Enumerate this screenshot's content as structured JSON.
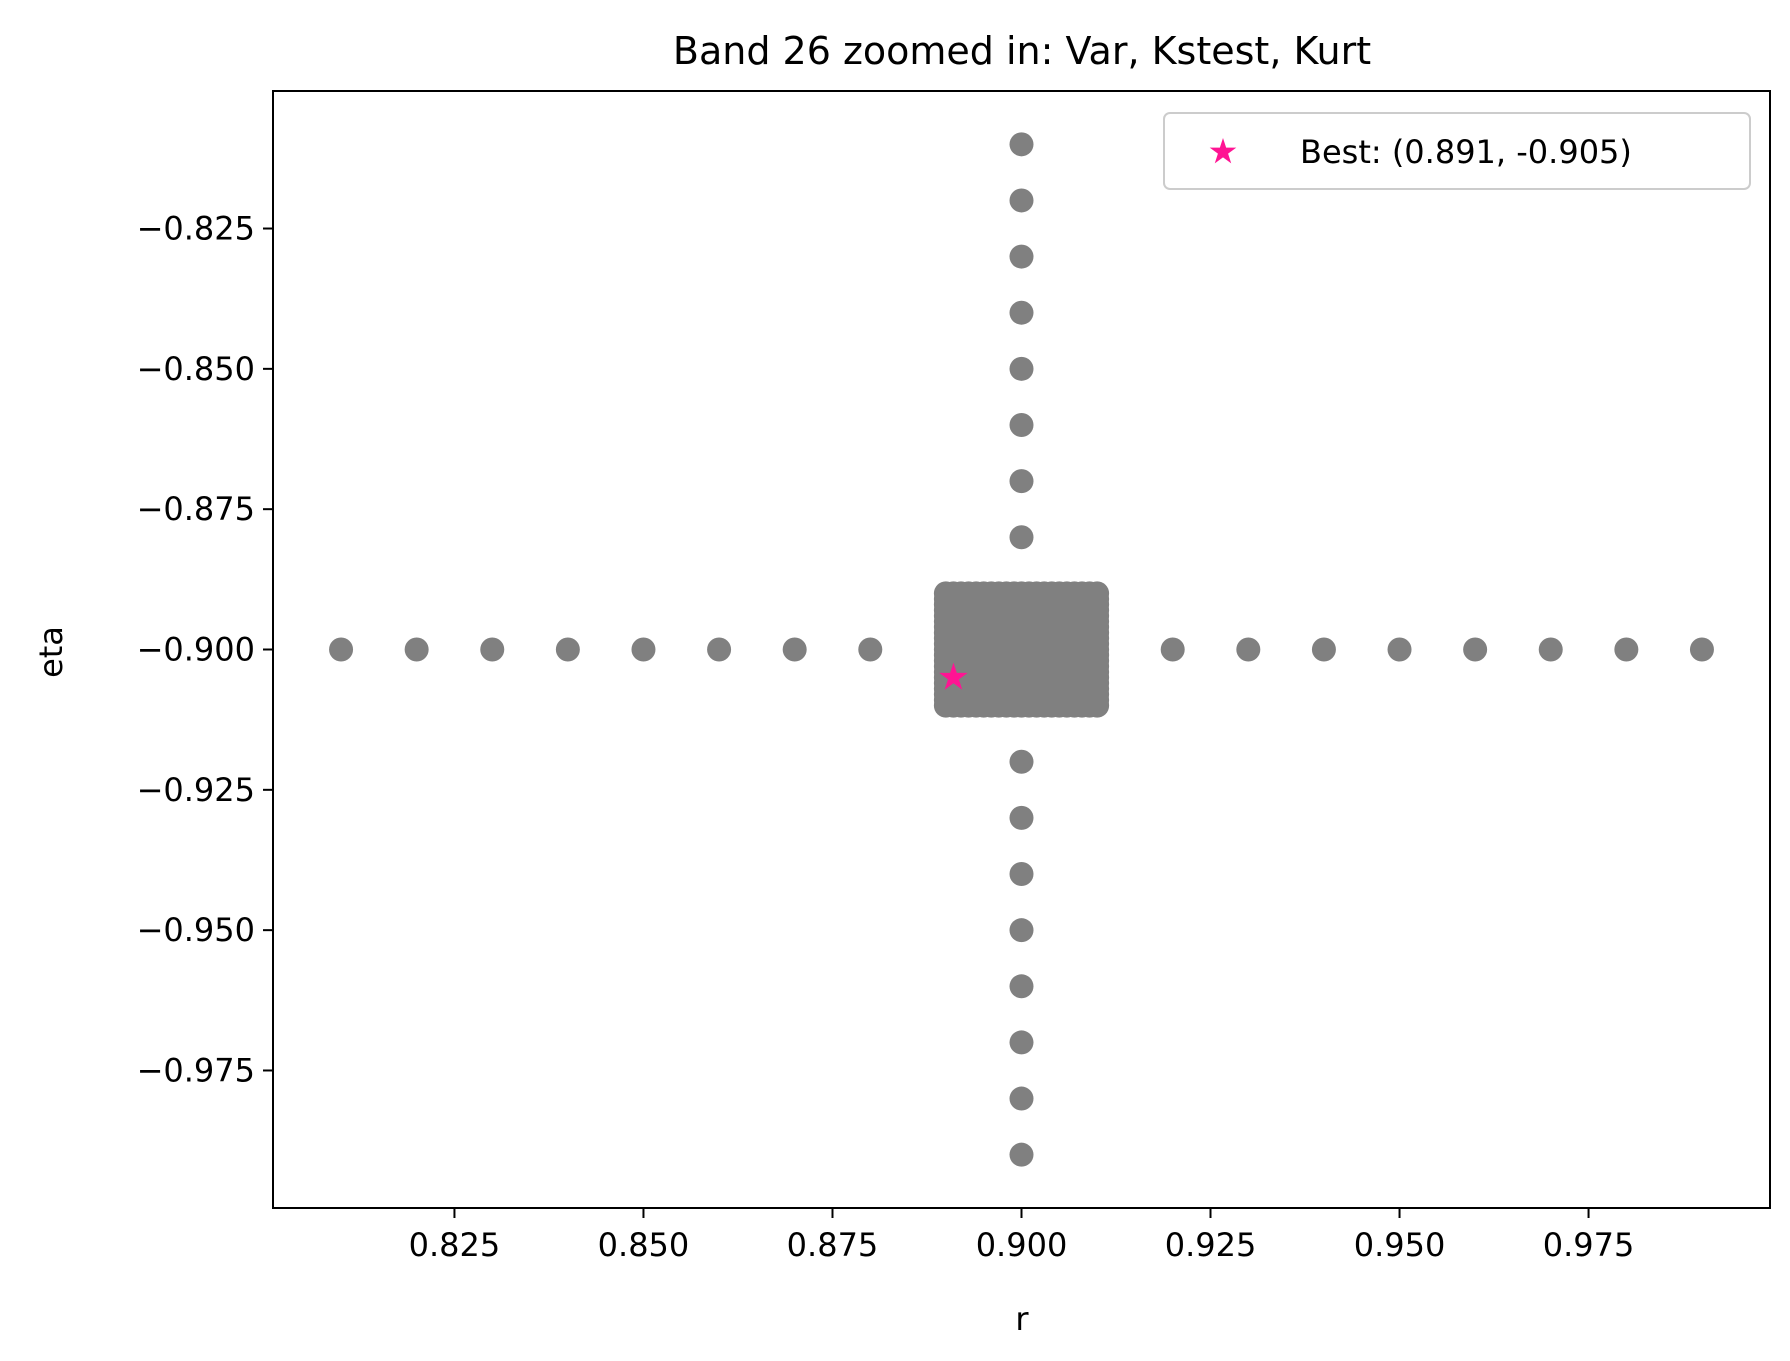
{
  "chart_data": {
    "type": "scatter",
    "title": "Band 26 zoomed in: Var, Kstest, Kurt",
    "xlabel": "r",
    "ylabel": "eta",
    "xlim": [
      0.801,
      0.999
    ],
    "ylim": [
      -0.9995,
      -0.8005
    ],
    "xticks": [
      0.825,
      0.85,
      0.875,
      0.9,
      0.925,
      0.95,
      0.975
    ],
    "xtick_labels": [
      "0.825",
      "0.850",
      "0.875",
      "0.900",
      "0.925",
      "0.950",
      "0.975"
    ],
    "yticks": [
      -0.825,
      -0.85,
      -0.875,
      -0.9,
      -0.925,
      -0.95,
      -0.975
    ],
    "ytick_labels": [
      "−0.825",
      "−0.850",
      "−0.875",
      "−0.900",
      "−0.925",
      "−0.950",
      "−0.975"
    ],
    "grid": false,
    "legend_position": "top-right",
    "series": [
      {
        "color": "#808080",
        "marker": "circle",
        "horizontal_scan": {
          "eta": -0.9,
          "r": [
            0.81,
            0.82,
            0.83,
            0.84,
            0.85,
            0.86,
            0.87,
            0.88,
            0.92,
            0.93,
            0.94,
            0.95,
            0.96,
            0.97,
            0.98,
            0.99
          ]
        },
        "vertical_scan": {
          "r": 0.9,
          "eta": [
            -0.81,
            -0.82,
            -0.83,
            -0.84,
            -0.85,
            -0.86,
            -0.87,
            -0.88,
            -0.92,
            -0.93,
            -0.94,
            -0.95,
            -0.96,
            -0.97,
            -0.98,
            -0.99
          ]
        },
        "dense_grid": {
          "r_range": [
            0.89,
            0.91
          ],
          "eta_range": [
            -0.91,
            -0.89
          ],
          "step": 0.001
        }
      },
      {
        "name": "Best: (0.891, -0.905)",
        "color": "#ff1493",
        "marker": "star",
        "points": [
          {
            "x": 0.891,
            "y": -0.905
          }
        ]
      }
    ]
  }
}
